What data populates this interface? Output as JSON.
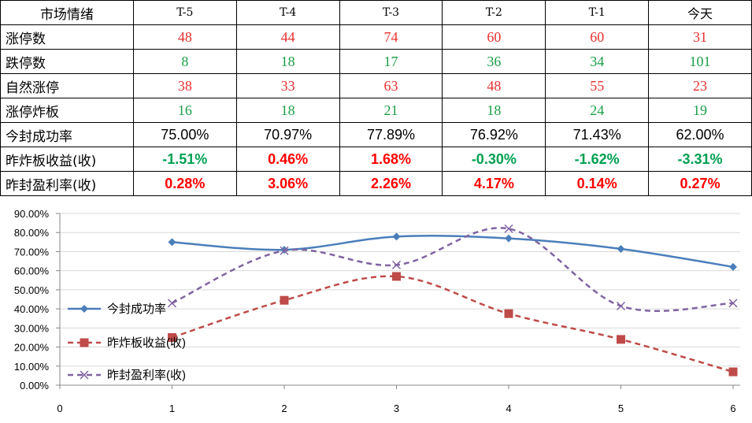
{
  "table": {
    "headers": [
      "市场情绪",
      "T-5",
      "T-4",
      "T-3",
      "T-2",
      "T-1",
      "今天"
    ],
    "rows": [
      {
        "label": "涨停数",
        "values": [
          "48",
          "44",
          "74",
          "60",
          "60",
          "31"
        ]
      },
      {
        "label": "跌停数",
        "values": [
          "8",
          "18",
          "17",
          "36",
          "34",
          "101"
        ]
      },
      {
        "label": "自然涨停",
        "values": [
          "38",
          "33",
          "63",
          "48",
          "55",
          "23"
        ]
      },
      {
        "label": "涨停炸板",
        "values": [
          "16",
          "18",
          "21",
          "18",
          "24",
          "19"
        ]
      },
      {
        "label": "今封成功率",
        "values": [
          "75.00%",
          "70.97%",
          "77.89%",
          "76.92%",
          "71.43%",
          "62.00%"
        ]
      },
      {
        "label": "昨炸板收益(收)",
        "values": [
          "-1.51%",
          "0.46%",
          "1.68%",
          "-0.30%",
          "-1.62%",
          "-3.31%"
        ]
      },
      {
        "label": "昨封盈利率(收)",
        "values": [
          "0.28%",
          "3.06%",
          "2.26%",
          "4.17%",
          "0.14%",
          "0.27%"
        ]
      }
    ],
    "colors": {
      "red": "#e8302f",
      "green": "#1a9e45"
    }
  },
  "chart_data": {
    "type": "line",
    "x": [
      1,
      2,
      3,
      4,
      5,
      6
    ],
    "xlim": [
      0,
      6
    ],
    "xticks": [
      0,
      1,
      2,
      3,
      4,
      5,
      6
    ],
    "ylim": [
      0,
      90
    ],
    "yticks": [
      "0.00%",
      "10.00%",
      "20.00%",
      "30.00%",
      "40.00%",
      "50.00%",
      "60.00%",
      "70.00%",
      "80.00%",
      "90.00%"
    ],
    "grid": "horizontal",
    "legend_position": "left",
    "series": [
      {
        "name": "今封成功率",
        "values": [
          75.0,
          70.97,
          77.89,
          76.92,
          71.43,
          62.0
        ],
        "color": "#4a7ebb",
        "marker": "diamond",
        "style": "solid"
      },
      {
        "name": "昨炸板收益(收)",
        "values": [
          25,
          44.5,
          57,
          37.5,
          24,
          7
        ],
        "color": "#be4b48",
        "marker": "square",
        "style": "dashed"
      },
      {
        "name": "昨封盈利率(收)",
        "values": [
          43,
          70.5,
          63,
          82,
          41.5,
          43
        ],
        "color": "#8064a2",
        "marker": "x",
        "style": "dashed"
      }
    ]
  }
}
